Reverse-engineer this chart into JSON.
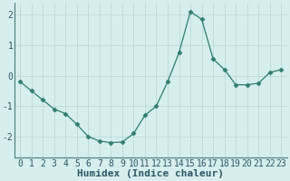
{
  "x": [
    0,
    1,
    2,
    3,
    4,
    5,
    6,
    7,
    8,
    9,
    10,
    11,
    12,
    13,
    14,
    15,
    16,
    17,
    18,
    19,
    20,
    21,
    22,
    23
  ],
  "y": [
    -0.2,
    -0.5,
    -0.8,
    -1.1,
    -1.25,
    -1.6,
    -2.0,
    -2.15,
    -2.2,
    -2.18,
    -1.9,
    -1.3,
    -1.0,
    -0.2,
    0.75,
    2.1,
    1.85,
    0.55,
    0.2,
    -0.3,
    -0.3,
    -0.25,
    0.1,
    0.2
  ],
  "line_color": "#2e7d6e",
  "marker": "D",
  "marker_size": 2.5,
  "bg_color": "#d6eeee",
  "grid_color": "#b8d4d4",
  "xlabel": "Humidex (Indice chaleur)",
  "xlabel_fontsize": 8,
  "tick_fontsize": 7,
  "ylim": [
    -2.7,
    2.4
  ],
  "xlim": [
    -0.5,
    23.5
  ],
  "yticks": [
    -2,
    -1,
    0,
    1,
    2
  ],
  "xticks": [
    0,
    1,
    2,
    3,
    4,
    5,
    6,
    7,
    8,
    9,
    10,
    11,
    12,
    13,
    14,
    15,
    16,
    17,
    18,
    19,
    20,
    21,
    22,
    23
  ]
}
